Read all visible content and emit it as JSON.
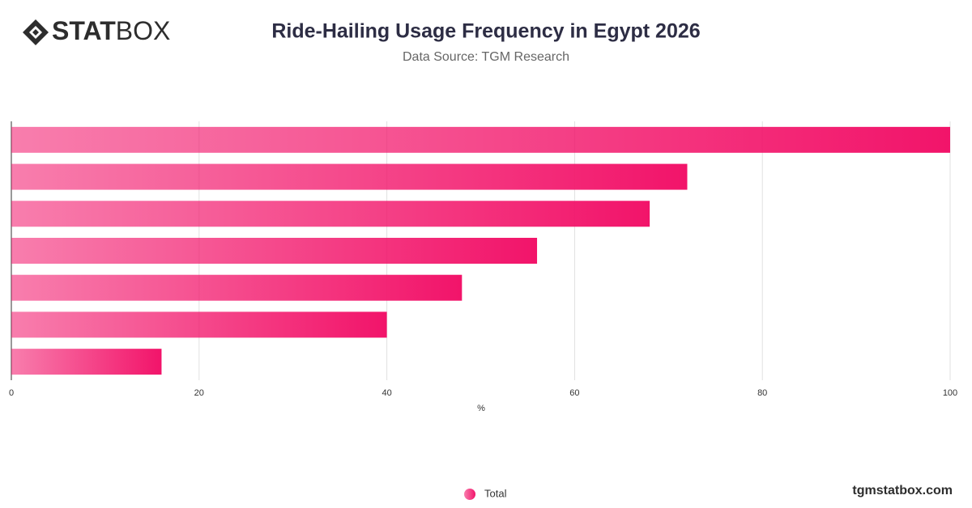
{
  "logo": [
    "STAT",
    "BOX"
  ],
  "footer": "tgmstatbox.com",
  "chart_data": {
    "type": "bar",
    "orientation": "horizontal",
    "title": "Ride-Hailing Usage Frequency in Egypt 2026",
    "subtitle": "Data Source: TGM Research",
    "x_label": "%",
    "categories": [
      null,
      null,
      null,
      null,
      null,
      null,
      null
    ],
    "series": [
      {
        "name": "Total",
        "color": "#f2146a",
        "values": [
          100,
          72,
          68,
          56,
          48,
          40,
          16
        ]
      }
    ],
    "xlim": [
      0,
      100
    ],
    "xticks": [
      0,
      20,
      40,
      60,
      80,
      100
    ],
    "grid": true,
    "legend": "bottom"
  }
}
